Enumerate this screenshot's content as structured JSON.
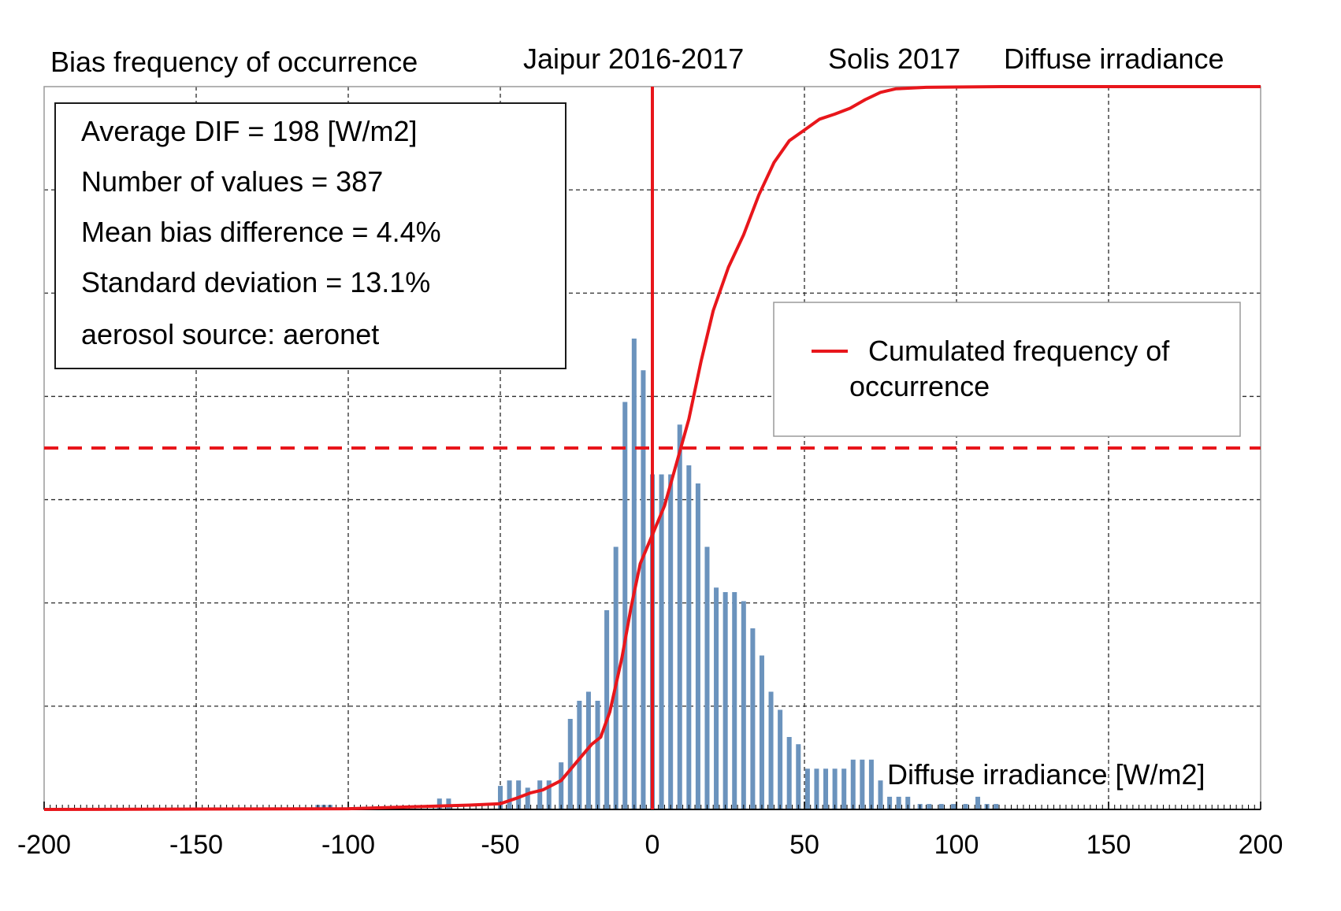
{
  "chart_data": {
    "type": "histogram",
    "title_left": "Bias frequency of occurrence",
    "title_station": "Jaipur 2016-2017",
    "title_model": "Solis 2017",
    "title_variable": "Diffuse irradiance",
    "xlabel": "Diffuse irradiance [W/m2]",
    "ylabel": "",
    "xlim": [
      -200,
      200
    ],
    "x_ticks": [
      -200,
      -150,
      -100,
      -50,
      0,
      50,
      100,
      150,
      200
    ],
    "x_tick_labels": [
      "-200",
      "-150",
      "-100",
      "-50",
      "0",
      "50",
      "100",
      "150",
      "200"
    ],
    "y_gridlines": 7,
    "grid": true,
    "bin_width": 2,
    "histogram": {
      "name": "Bias frequency of occurrence",
      "color": "#6b93bd",
      "relative_heights": [
        {
          "x": -110,
          "v": 0.005
        },
        {
          "x": -108,
          "v": 0.005
        },
        {
          "x": -106,
          "v": 0.005
        },
        {
          "x": -70,
          "v": 0.012
        },
        {
          "x": -67,
          "v": 0.012
        },
        {
          "x": -50,
          "v": 0.026
        },
        {
          "x": -47,
          "v": 0.032
        },
        {
          "x": -44,
          "v": 0.032
        },
        {
          "x": -41,
          "v": 0.024
        },
        {
          "x": -37,
          "v": 0.032
        },
        {
          "x": -34,
          "v": 0.032
        },
        {
          "x": -30,
          "v": 0.052
        },
        {
          "x": -27,
          "v": 0.1
        },
        {
          "x": -24,
          "v": 0.12
        },
        {
          "x": -21,
          "v": 0.13
        },
        {
          "x": -18,
          "v": 0.12
        },
        {
          "x": -15,
          "v": 0.22
        },
        {
          "x": -12,
          "v": 0.29
        },
        {
          "x": -9,
          "v": 0.45
        },
        {
          "x": -6,
          "v": 0.52
        },
        {
          "x": -3,
          "v": 0.485
        },
        {
          "x": 0,
          "v": 0.37
        },
        {
          "x": 3,
          "v": 0.37
        },
        {
          "x": 6,
          "v": 0.37
        },
        {
          "x": 9,
          "v": 0.425
        },
        {
          "x": 12,
          "v": 0.38
        },
        {
          "x": 15,
          "v": 0.36
        },
        {
          "x": 18,
          "v": 0.29
        },
        {
          "x": 21,
          "v": 0.245
        },
        {
          "x": 24,
          "v": 0.24
        },
        {
          "x": 27,
          "v": 0.24
        },
        {
          "x": 30,
          "v": 0.23
        },
        {
          "x": 33,
          "v": 0.2
        },
        {
          "x": 36,
          "v": 0.17
        },
        {
          "x": 39,
          "v": 0.13
        },
        {
          "x": 42,
          "v": 0.11
        },
        {
          "x": 45,
          "v": 0.08
        },
        {
          "x": 48,
          "v": 0.072
        },
        {
          "x": 51,
          "v": 0.045
        },
        {
          "x": 54,
          "v": 0.045
        },
        {
          "x": 57,
          "v": 0.045
        },
        {
          "x": 60,
          "v": 0.045
        },
        {
          "x": 63,
          "v": 0.045
        },
        {
          "x": 66,
          "v": 0.055
        },
        {
          "x": 69,
          "v": 0.055
        },
        {
          "x": 72,
          "v": 0.055
        },
        {
          "x": 75,
          "v": 0.032
        },
        {
          "x": 78,
          "v": 0.014
        },
        {
          "x": 81,
          "v": 0.014
        },
        {
          "x": 84,
          "v": 0.014
        },
        {
          "x": 88,
          "v": 0.006
        },
        {
          "x": 91,
          "v": 0.006
        },
        {
          "x": 95,
          "v": 0.006
        },
        {
          "x": 99,
          "v": 0.006
        },
        {
          "x": 103,
          "v": 0.006
        },
        {
          "x": 107,
          "v": 0.014
        },
        {
          "x": 110,
          "v": 0.006
        },
        {
          "x": 113,
          "v": 0.006
        }
      ]
    },
    "cumulative": {
      "name": "Cumulated frequency of occurrence",
      "color": "#e8161b",
      "points": [
        [
          -200,
          0
        ],
        [
          -100,
          0.001
        ],
        [
          -75,
          0.004
        ],
        [
          -60,
          0.006
        ],
        [
          -50,
          0.008
        ],
        [
          -45,
          0.015
        ],
        [
          -40,
          0.023
        ],
        [
          -36,
          0.027
        ],
        [
          -30,
          0.04
        ],
        [
          -25,
          0.065
        ],
        [
          -20,
          0.09
        ],
        [
          -17,
          0.1
        ],
        [
          -14,
          0.135
        ],
        [
          -10,
          0.21
        ],
        [
          -7,
          0.28
        ],
        [
          -4,
          0.34
        ],
        [
          0,
          0.38
        ],
        [
          4,
          0.42
        ],
        [
          8,
          0.48
        ],
        [
          12,
          0.54
        ],
        [
          16,
          0.62
        ],
        [
          20,
          0.69
        ],
        [
          25,
          0.75
        ],
        [
          30,
          0.795
        ],
        [
          35,
          0.85
        ],
        [
          40,
          0.895
        ],
        [
          45,
          0.925
        ],
        [
          50,
          0.94
        ],
        [
          55,
          0.955
        ],
        [
          60,
          0.962
        ],
        [
          65,
          0.97
        ],
        [
          70,
          0.982
        ],
        [
          75,
          0.992
        ],
        [
          80,
          0.997
        ],
        [
          90,
          0.999
        ],
        [
          100,
          0.9995
        ],
        [
          115,
          1.0
        ],
        [
          200,
          1.0
        ]
      ]
    },
    "reference_lines": [
      {
        "orientation": "vertical",
        "x": 0,
        "style": "solid",
        "color": "#e8161b"
      },
      {
        "orientation": "horizontal",
        "y": 0.5,
        "style": "dashed",
        "color": "#e8161b"
      }
    ],
    "stats_box": {
      "lines": [
        "Average DIF = 198 [W/m2]",
        "Number of values = 387",
        "Mean bias difference = 4.4%",
        "Standard deviation = 13.1%",
        "aerosol source: aeronet"
      ]
    },
    "legend": {
      "placement": "right",
      "line1": "Cumulated frequency of",
      "line2": "occurrence"
    }
  }
}
